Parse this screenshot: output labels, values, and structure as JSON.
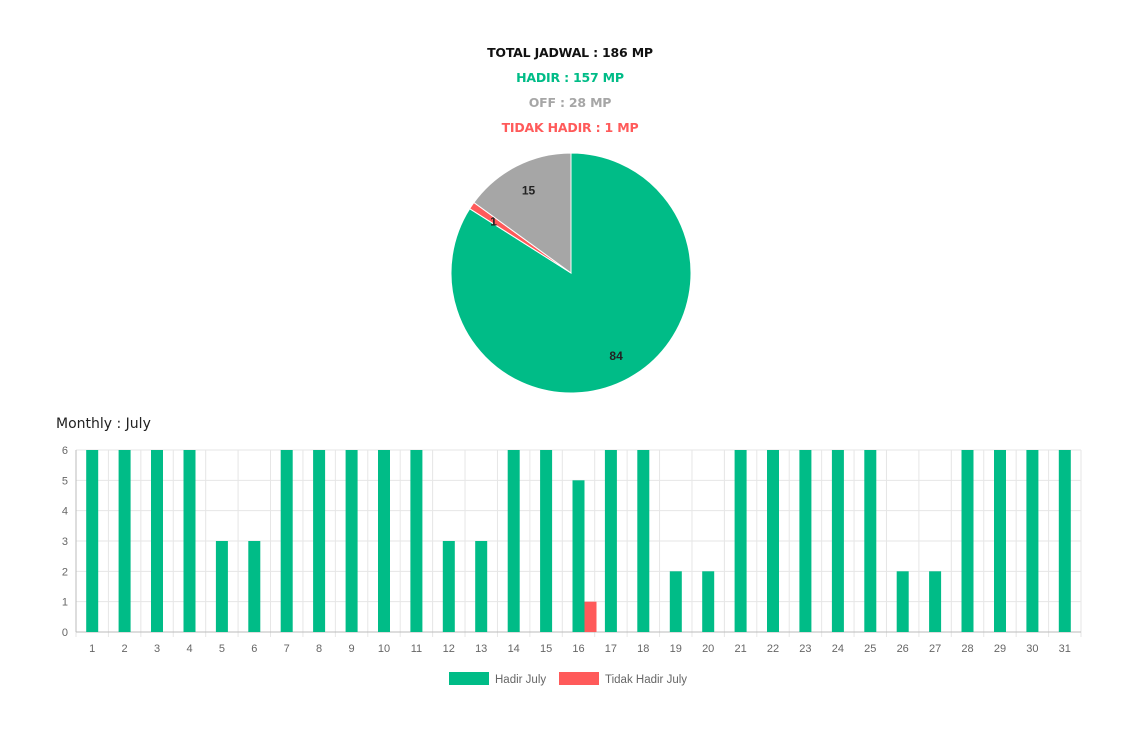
{
  "summary": {
    "total": "TOTAL JADWAL : 186 MP",
    "hadir": "HADIR : 157 MP",
    "off": "OFF : 28 MP",
    "tidak_hadir": "TIDAK HADIR : 1 MP"
  },
  "colors": {
    "hadir": "#00bc87",
    "off": "#a6a6a6",
    "tidak_hadir": "#ff5a5a",
    "total": "#111111",
    "grid": "#e6e6e6",
    "axis": "#666666"
  },
  "monthly": {
    "title": "Monthly : July"
  },
  "chart_data": [
    {
      "type": "pie",
      "labels": [
        "",
        "",
        ""
      ],
      "values": [
        84,
        1,
        15
      ],
      "data_labels": [
        "84",
        "1",
        "15"
      ],
      "colors": [
        "#00bc87",
        "#ff5a5a",
        "#a6a6a6"
      ]
    },
    {
      "type": "bar",
      "categories": [
        "1",
        "2",
        "3",
        "4",
        "5",
        "6",
        "7",
        "8",
        "9",
        "10",
        "11",
        "12",
        "13",
        "14",
        "15",
        "16",
        "17",
        "18",
        "19",
        "20",
        "21",
        "22",
        "23",
        "24",
        "25",
        "26",
        "27",
        "28",
        "29",
        "30",
        "31"
      ],
      "series": [
        {
          "name": "Hadir July",
          "color": "#00bc87",
          "values": [
            6,
            6,
            6,
            6,
            3,
            3,
            6,
            6,
            6,
            6,
            6,
            3,
            3,
            6,
            6,
            5,
            6,
            6,
            2,
            2,
            6,
            6,
            6,
            6,
            6,
            2,
            2,
            6,
            6,
            6,
            6
          ]
        },
        {
          "name": "Tidak Hadir July",
          "color": "#ff5a5a",
          "values": [
            0,
            0,
            0,
            0,
            0,
            0,
            0,
            0,
            0,
            0,
            0,
            0,
            0,
            0,
            0,
            1,
            0,
            0,
            0,
            0,
            0,
            0,
            0,
            0,
            0,
            0,
            0,
            0,
            0,
            0,
            0
          ]
        }
      ],
      "ylim": [
        0,
        6
      ],
      "yticks": [
        "0",
        "1",
        "2",
        "3",
        "4",
        "5",
        "6"
      ],
      "grid": true,
      "legend": "bottom-center"
    }
  ]
}
